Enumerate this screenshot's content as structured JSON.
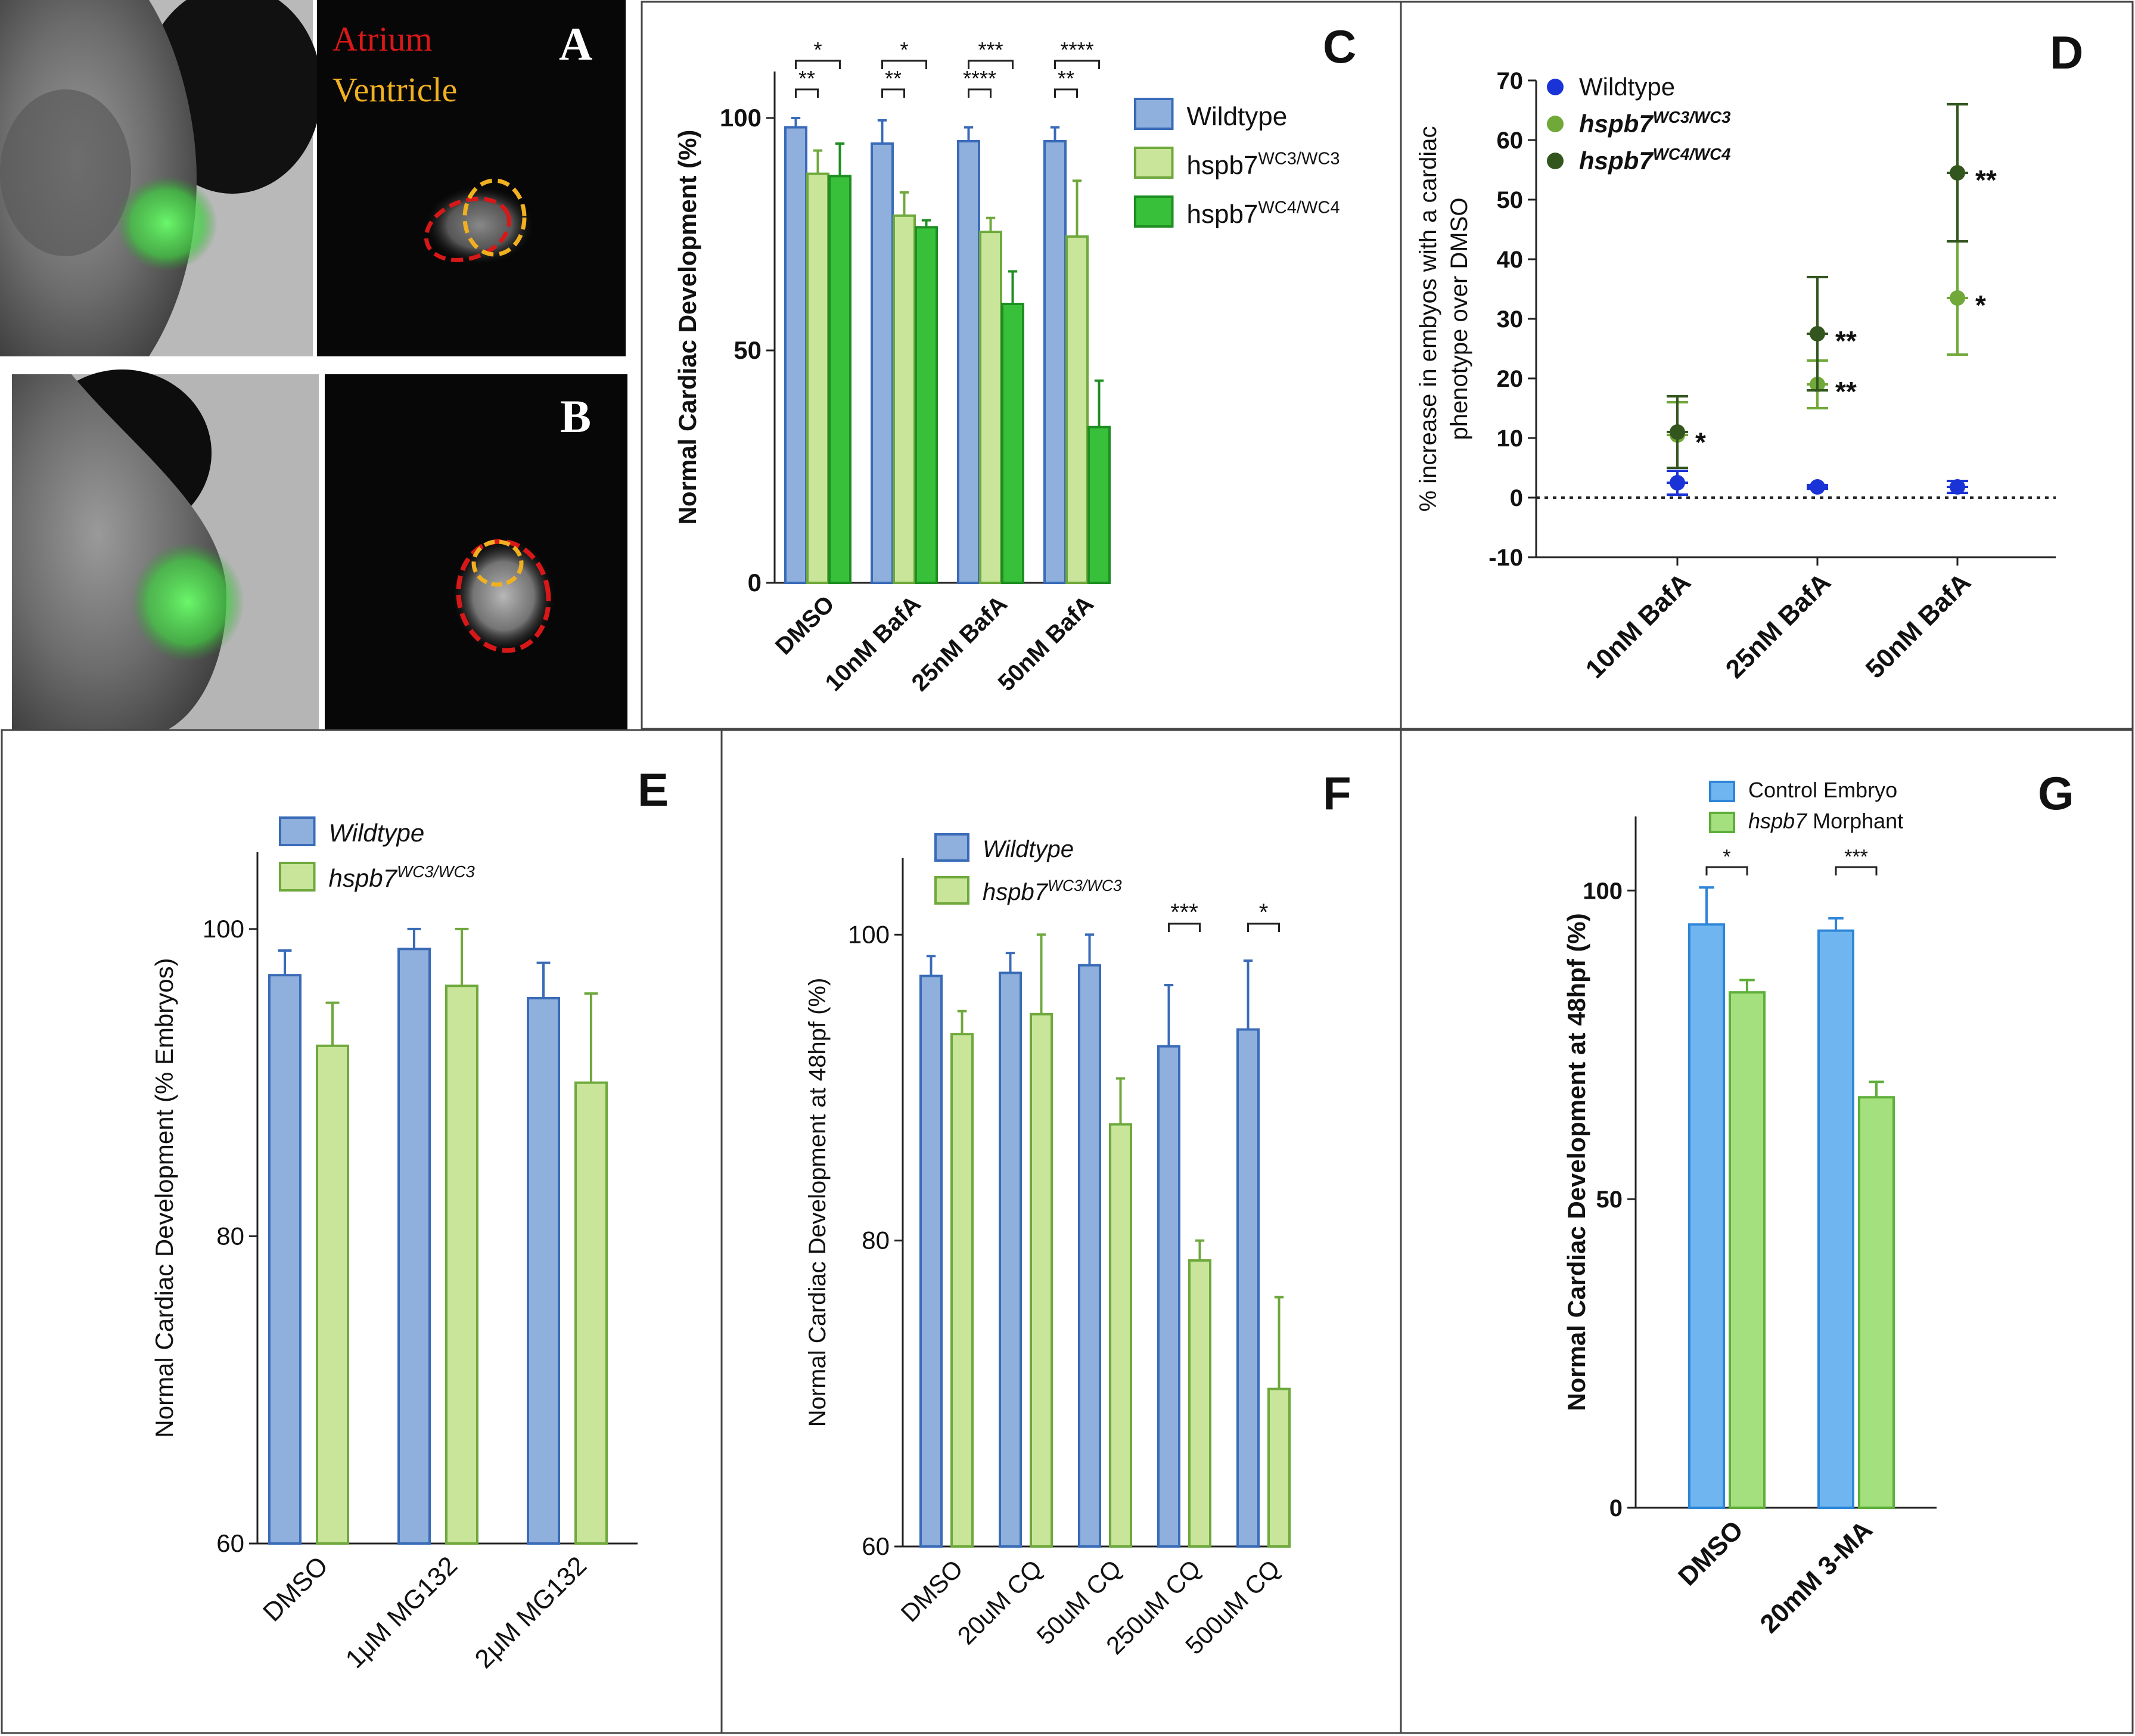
{
  "colors": {
    "wildtype_fill": "#8FB0DC",
    "wildtype_edge": "#3A6BB8",
    "wc3_fill": "#C8E59A",
    "wc3_edge": "#6FA83C",
    "wc4_fill": "#39C03A",
    "wc4_edge": "#1E8E22",
    "d_wildtype": "#1A33D6",
    "d_wc3": "#71A83A",
    "d_wc4": "#33561E",
    "g_control_fill": "#6FB6F0",
    "g_control_edge": "#2E86D8",
    "g_morphant_fill": "#A5E07F",
    "g_morphant_edge": "#5EAE3A",
    "atrium": "#D81818",
    "ventricle": "#F0B020"
  },
  "panels": {
    "A": {
      "letter": "A",
      "label_atrium": "Atrium",
      "label_ventricle": "Ventricle"
    },
    "B": {
      "letter": "B"
    }
  },
  "chart_data": [
    {
      "panel": "C",
      "letter": "C",
      "type": "bar",
      "ylabel": "Normal Cardiac Development (%)",
      "ylim": [
        0,
        110
      ],
      "yticks": [
        0,
        50,
        100
      ],
      "categories": [
        "DMSO",
        "10nM BafA",
        "25nM BafA",
        "50nM BafA"
      ],
      "series": [
        {
          "name": "Wildtype",
          "values": [
            98,
            94.5,
            95,
            95
          ],
          "errors": [
            2,
            5,
            3,
            3
          ]
        },
        {
          "name": "hspb7",
          "sup": "WC3/WC3",
          "values": [
            88,
            79,
            75.5,
            74.5
          ],
          "errors": [
            5,
            5,
            3,
            12
          ]
        },
        {
          "name": "hspb7",
          "sup": "WC4/WC4",
          "values": [
            87.5,
            76.5,
            60,
            33.5
          ],
          "errors": [
            7,
            1.5,
            7,
            10
          ]
        }
      ],
      "significance": [
        {
          "category": 0,
          "pair": [
            0,
            1
          ],
          "label": "**"
        },
        {
          "category": 0,
          "pair": [
            0,
            2
          ],
          "label": "*"
        },
        {
          "category": 1,
          "pair": [
            0,
            1
          ],
          "label": "**"
        },
        {
          "category": 1,
          "pair": [
            0,
            2
          ],
          "label": "*"
        },
        {
          "category": 2,
          "pair": [
            0,
            1
          ],
          "label": "****"
        },
        {
          "category": 2,
          "pair": [
            0,
            2
          ],
          "label": "***"
        },
        {
          "category": 3,
          "pair": [
            0,
            1
          ],
          "label": "**"
        },
        {
          "category": 3,
          "pair": [
            0,
            2
          ],
          "label": "****"
        }
      ],
      "legend_position": "top-right"
    },
    {
      "panel": "D",
      "letter": "D",
      "type": "scatter",
      "ylabel_line1": "% increase in embyos with a cardiac",
      "ylabel_line2": "phenotype over DMSO",
      "ylim": [
        -10,
        70
      ],
      "yticks": [
        -10,
        0,
        10,
        20,
        30,
        40,
        50,
        60,
        70
      ],
      "categories": [
        "10nM BafA",
        "25nM BafA",
        "50nM BafA"
      ],
      "series": [
        {
          "name": "Wildtype",
          "values": [
            2.5,
            1.8,
            1.8
          ],
          "errors": [
            2,
            0.3,
            1
          ],
          "marks": [
            "",
            "",
            ""
          ]
        },
        {
          "name": "hspb7",
          "sup": "WC3/WC3",
          "values": [
            10.5,
            19,
            33.5
          ],
          "errors": [
            5.5,
            4,
            9.5
          ],
          "marks": [
            "*",
            "**",
            "*"
          ]
        },
        {
          "name": "hspb7",
          "sup": "WC4/WC4",
          "values": [
            11,
            27.5,
            54.5
          ],
          "errors": [
            6,
            9.5,
            11.5
          ],
          "marks": [
            "",
            "**",
            "**"
          ]
        }
      ],
      "reference_line": 0,
      "legend_position": "top-left"
    },
    {
      "panel": "E",
      "letter": "E",
      "type": "bar",
      "ylabel": "Normal Cardiac Development (% Embryos)",
      "ylim": [
        60,
        105
      ],
      "yticks": [
        60,
        80,
        100
      ],
      "categories": [
        "DMSO",
        "1μM MG132",
        "2μM MG132"
      ],
      "series": [
        {
          "name": "Wildtype",
          "values": [
            97,
            98.7,
            95.5
          ],
          "errors": [
            1.6,
            1.3,
            2.3
          ]
        },
        {
          "name": "hspb7",
          "sup": "WC3/WC3",
          "values": [
            92.4,
            96.3,
            90
          ],
          "errors": [
            2.8,
            3.7,
            5.8
          ]
        }
      ],
      "legend_position": "top-left"
    },
    {
      "panel": "F",
      "letter": "F",
      "type": "bar",
      "ylabel": "Normal Cardiac Development at 48hpf (%)",
      "ylim": [
        60,
        105
      ],
      "yticks": [
        60,
        80,
        100
      ],
      "categories": [
        "DMSO",
        "20uM CQ",
        "50uM CQ",
        "250uM CQ",
        "500uM CQ"
      ],
      "series": [
        {
          "name": "Wildtype",
          "values": [
            97.3,
            97.5,
            98,
            92.7,
            93.8
          ],
          "errors": [
            1.3,
            1.3,
            2,
            4,
            4.5
          ]
        },
        {
          "name": "hspb7",
          "sup": "WC3/WC3",
          "values": [
            93.5,
            94.8,
            87.6,
            78.7,
            70.3
          ],
          "errors": [
            1.5,
            5.2,
            3,
            1.3,
            6
          ]
        }
      ],
      "significance": [
        {
          "category": 3,
          "pair": [
            0,
            1
          ],
          "label": "***"
        },
        {
          "category": 4,
          "pair": [
            0,
            1
          ],
          "label": "*"
        }
      ],
      "legend_position": "top-left"
    },
    {
      "panel": "G",
      "letter": "G",
      "type": "bar",
      "ylabel": "Normal Cardiac Development at 48hpf (%)",
      "ylim": [
        0,
        112
      ],
      "yticks": [
        0,
        50,
        100
      ],
      "categories": [
        "DMSO",
        "20mM 3-MA"
      ],
      "series": [
        {
          "name": "Control Embryo",
          "values": [
            94.5,
            93.5
          ],
          "errors": [
            6,
            2
          ]
        },
        {
          "name": "hspb7",
          "suffix": " Morphant",
          "values": [
            83.5,
            66.5
          ],
          "errors": [
            2,
            2.5
          ]
        }
      ],
      "significance": [
        {
          "category": 0,
          "pair": [
            0,
            1
          ],
          "label": "*"
        },
        {
          "category": 1,
          "pair": [
            0,
            1
          ],
          "label": "***"
        }
      ],
      "legend_position": "top-left"
    }
  ]
}
